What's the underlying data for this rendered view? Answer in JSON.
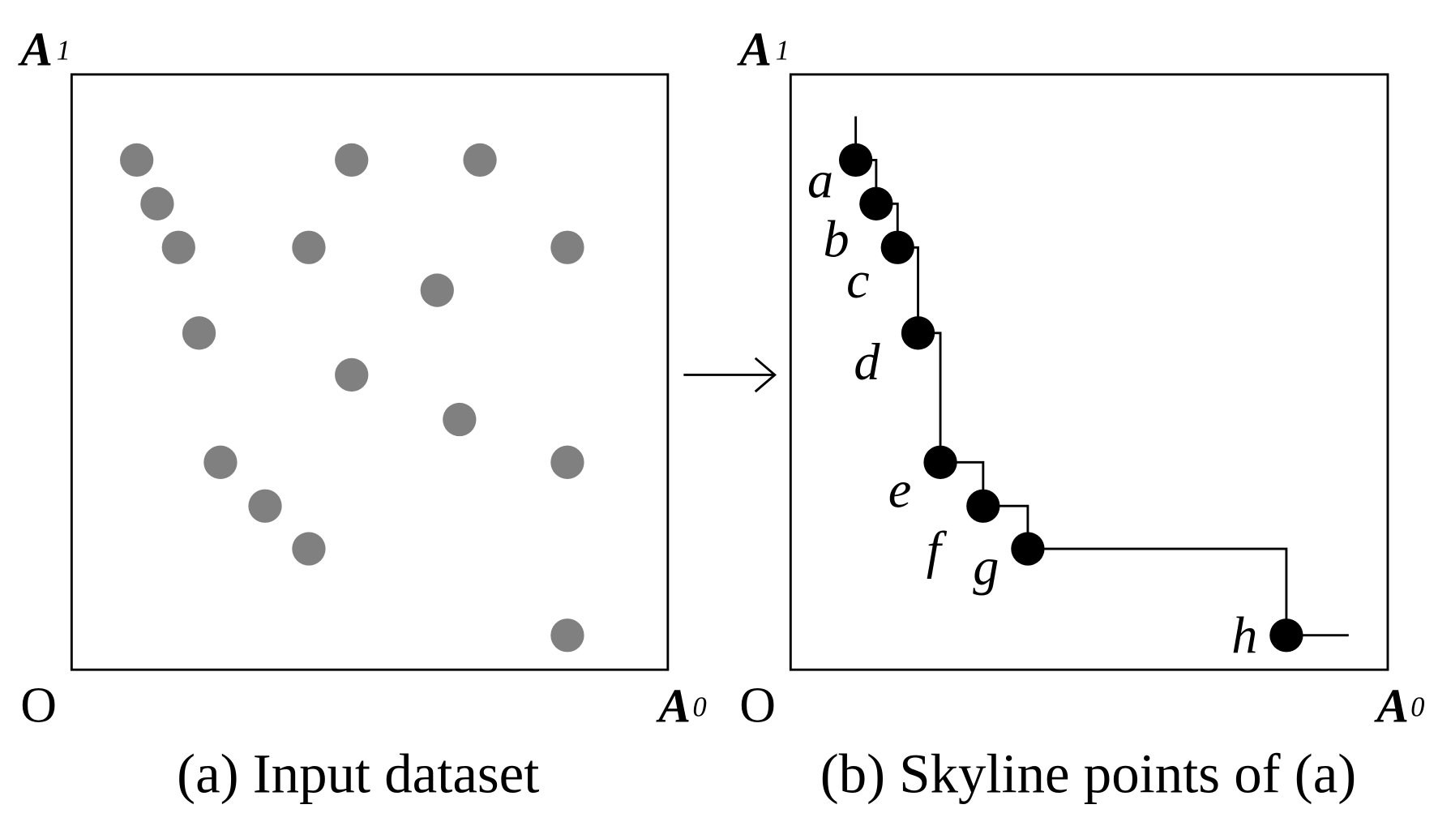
{
  "panels": [
    {
      "caption": "(a) Input dataset",
      "origin": "O",
      "y_axis": {
        "name": "A",
        "sub": "1"
      },
      "x_axis": {
        "name": "A",
        "sub": "0"
      }
    },
    {
      "caption": "(b) Skyline points of (a)",
      "origin": "O",
      "y_axis": {
        "name": "A",
        "sub": "1"
      },
      "x_axis": {
        "name": "A",
        "sub": "0"
      },
      "points": [
        "a",
        "b",
        "c",
        "d",
        "e",
        "f",
        "g",
        "h"
      ]
    }
  ]
}
